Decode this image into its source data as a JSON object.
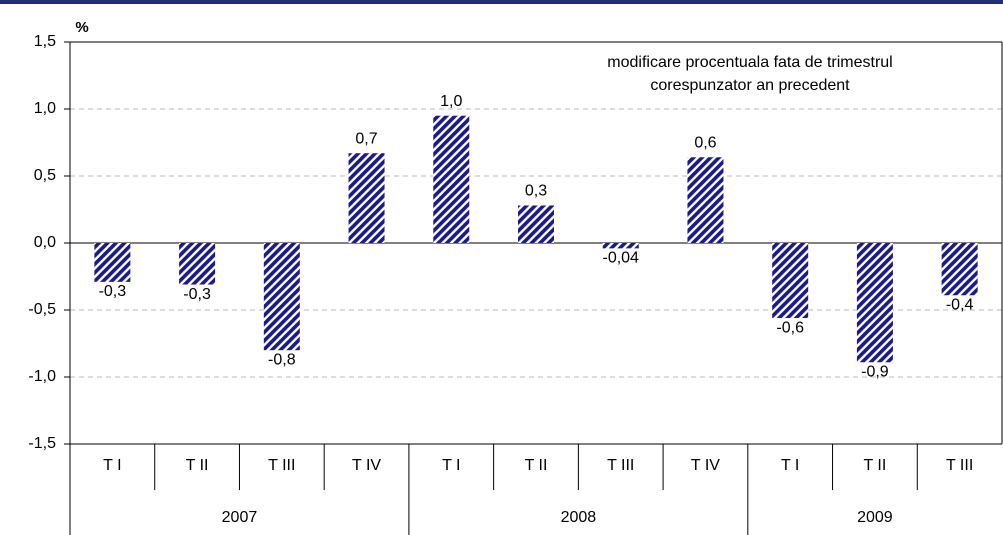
{
  "chart_data": {
    "type": "bar",
    "y_label": "%",
    "annotation": [
      "modificare procentuala fata de trimestrul",
      "corespunzator an precedent"
    ],
    "color": "#1a1a8c",
    "groups": [
      {
        "name": "2007",
        "categories": [
          "T I",
          "T II",
          "T III",
          "T IV"
        ],
        "values": [
          -0.29,
          -0.31,
          -0.8,
          0.67
        ],
        "value_labels": [
          "-0,3",
          "-0,3",
          "-0,8",
          "0,7"
        ]
      },
      {
        "name": "2008",
        "categories": [
          "T I",
          "T II",
          "T III",
          "T IV"
        ],
        "values": [
          0.95,
          0.28,
          -0.04,
          0.64
        ],
        "value_labels": [
          "1,0",
          "0,3",
          "-0,04",
          "0,6"
        ]
      },
      {
        "name": "2009",
        "categories": [
          "T I",
          "T II",
          "T III"
        ],
        "values": [
          -0.56,
          -0.89,
          -0.39
        ],
        "value_labels": [
          "-0,6",
          "-0,9",
          "-0,4"
        ]
      }
    ],
    "ylim": [
      -1.5,
      1.5
    ],
    "yticks": [
      {
        "value": -1.5,
        "label": "-1,5"
      },
      {
        "value": -1.0,
        "label": "-1,0"
      },
      {
        "value": -0.5,
        "label": "-0,5"
      },
      {
        "value": 0,
        "label": "0,0"
      },
      {
        "value": 0.5,
        "label": "0,5"
      },
      {
        "value": 1.0,
        "label": "1,0"
      },
      {
        "value": 1.5,
        "label": "1,5"
      }
    ],
    "grid": true
  }
}
